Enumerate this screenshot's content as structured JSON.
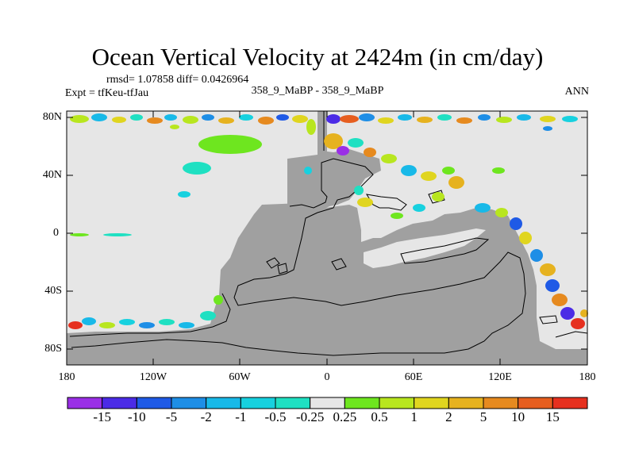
{
  "header": {
    "title": "Ocean Vertical Velocity at 2424m (in cm/day)",
    "stats": "rmsd= 1.07858 diff= 0.0426964",
    "experiment": "Expt = tfKeu-tfJau",
    "cases": "358_9_MaBP - 358_9_MaBP",
    "season": "ANN"
  },
  "axes": {
    "y_ticks": [
      "80N",
      "40N",
      "0",
      "40S",
      "80S"
    ],
    "x_ticks": [
      "180",
      "120W",
      "60W",
      "0",
      "60E",
      "120E",
      "180"
    ]
  },
  "colorbar": {
    "labels": [
      "-15",
      "-10",
      "-5",
      "-2",
      "-1",
      "-0.5",
      "-0.25",
      "0.25",
      "0.5",
      "1",
      "2",
      "5",
      "10",
      "15"
    ],
    "colors": [
      "#9a2fe6",
      "#4b2be6",
      "#1f5ae6",
      "#1e8ee6",
      "#18b9e8",
      "#17d1df",
      "#1fe0c2",
      "#e6e6e6",
      "#6ee61f",
      "#b8e61f",
      "#e0d51f",
      "#e6b21f",
      "#e68a1f",
      "#e65e1f",
      "#e6301f"
    ]
  },
  "map_colors": {
    "ocean": "#e6e6e6",
    "land": "#a0a0a0",
    "outline": "#000000"
  }
}
